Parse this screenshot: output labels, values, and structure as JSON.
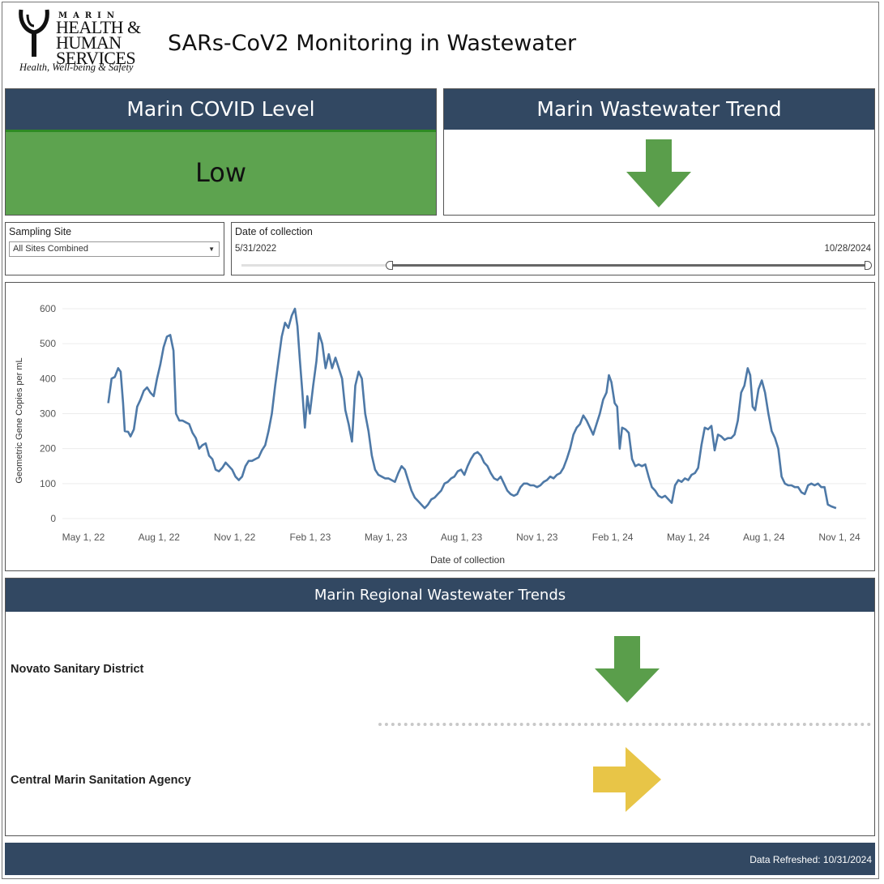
{
  "header": {
    "logo": {
      "marin": "MARIN",
      "line1": "HEALTH &",
      "line2": "HUMAN",
      "line3": "SERVICES",
      "tagline": "Health, Well-being & Safety"
    },
    "title": "SARs-CoV2 Monitoring in Wastewater"
  },
  "covid_level": {
    "title": "Marin COVID Level",
    "value": "Low",
    "color": "#5da34f"
  },
  "wastewater_trend": {
    "title": "Marin Wastewater Trend",
    "direction": "down",
    "arrow_icon": "arrow-down-icon",
    "color": "#5a9e4b"
  },
  "filters": {
    "sampling_site": {
      "label": "Sampling Site",
      "selected": "All Sites Combined"
    },
    "date_of_collection": {
      "label": "Date of collection",
      "start": "5/31/2022",
      "end": "10/28/2024"
    }
  },
  "chart_data": {
    "type": "line",
    "xlabel": "Date of collection",
    "ylabel": "Geometric Gene Copies per mL",
    "ylim": [
      0,
      600
    ],
    "yticks": [
      0,
      100,
      200,
      300,
      400,
      500,
      600
    ],
    "xticks": [
      "May 1, 22",
      "Aug 1, 22",
      "Nov 1, 22",
      "Feb 1, 23",
      "May 1, 23",
      "Aug 1, 23",
      "Nov 1, 23",
      "Feb 1, 24",
      "May 1, 24",
      "Aug 1, 24",
      "Nov 1, 24"
    ],
    "grid": true,
    "line_color": "#4e79a7",
    "series": [
      {
        "points": [
          [
            "2022-05-31",
            330
          ],
          [
            "2022-06-04",
            400
          ],
          [
            "2022-06-08",
            405
          ],
          [
            "2022-06-12",
            430
          ],
          [
            "2022-06-15",
            420
          ],
          [
            "2022-06-18",
            330
          ],
          [
            "2022-06-20",
            250
          ],
          [
            "2022-06-24",
            248
          ],
          [
            "2022-06-27",
            235
          ],
          [
            "2022-07-01",
            255
          ],
          [
            "2022-07-05",
            320
          ],
          [
            "2022-07-09",
            340
          ],
          [
            "2022-07-13",
            365
          ],
          [
            "2022-07-17",
            375
          ],
          [
            "2022-07-21",
            360
          ],
          [
            "2022-07-25",
            350
          ],
          [
            "2022-07-29",
            400
          ],
          [
            "2022-08-02",
            440
          ],
          [
            "2022-08-06",
            490
          ],
          [
            "2022-08-10",
            520
          ],
          [
            "2022-08-14",
            525
          ],
          [
            "2022-08-18",
            480
          ],
          [
            "2022-08-21",
            300
          ],
          [
            "2022-08-25",
            280
          ],
          [
            "2022-08-29",
            280
          ],
          [
            "2022-09-02",
            275
          ],
          [
            "2022-09-06",
            270
          ],
          [
            "2022-09-10",
            245
          ],
          [
            "2022-09-14",
            230
          ],
          [
            "2022-09-18",
            200
          ],
          [
            "2022-09-22",
            210
          ],
          [
            "2022-09-26",
            215
          ],
          [
            "2022-09-30",
            180
          ],
          [
            "2022-10-04",
            170
          ],
          [
            "2022-10-08",
            140
          ],
          [
            "2022-10-12",
            135
          ],
          [
            "2022-10-16",
            145
          ],
          [
            "2022-10-20",
            160
          ],
          [
            "2022-10-24",
            150
          ],
          [
            "2022-10-28",
            140
          ],
          [
            "2022-11-01",
            120
          ],
          [
            "2022-11-05",
            110
          ],
          [
            "2022-11-09",
            120
          ],
          [
            "2022-11-13",
            150
          ],
          [
            "2022-11-17",
            165
          ],
          [
            "2022-11-21",
            165
          ],
          [
            "2022-11-25",
            170
          ],
          [
            "2022-11-29",
            175
          ],
          [
            "2022-12-03",
            195
          ],
          [
            "2022-12-07",
            210
          ],
          [
            "2022-12-11",
            250
          ],
          [
            "2022-12-15",
            300
          ],
          [
            "2022-12-19",
            380
          ],
          [
            "2022-12-23",
            450
          ],
          [
            "2022-12-27",
            520
          ],
          [
            "2022-12-31",
            560
          ],
          [
            "2023-01-04",
            545
          ],
          [
            "2023-01-08",
            580
          ],
          [
            "2023-01-12",
            600
          ],
          [
            "2023-01-15",
            550
          ],
          [
            "2023-01-18",
            450
          ],
          [
            "2023-01-21",
            360
          ],
          [
            "2023-01-24",
            260
          ],
          [
            "2023-01-27",
            350
          ],
          [
            "2023-01-30",
            300
          ],
          [
            "2023-02-03",
            380
          ],
          [
            "2023-02-07",
            450
          ],
          [
            "2023-02-10",
            530
          ],
          [
            "2023-02-14",
            500
          ],
          [
            "2023-02-18",
            430
          ],
          [
            "2023-02-22",
            470
          ],
          [
            "2023-02-26",
            430
          ],
          [
            "2023-03-02",
            460
          ],
          [
            "2023-03-06",
            430
          ],
          [
            "2023-03-10",
            400
          ],
          [
            "2023-03-14",
            310
          ],
          [
            "2023-03-18",
            270
          ],
          [
            "2023-03-22",
            220
          ],
          [
            "2023-03-26",
            380
          ],
          [
            "2023-03-30",
            420
          ],
          [
            "2023-04-03",
            400
          ],
          [
            "2023-04-07",
            300
          ],
          [
            "2023-04-11",
            250
          ],
          [
            "2023-04-15",
            180
          ],
          [
            "2023-04-19",
            140
          ],
          [
            "2023-04-23",
            125
          ],
          [
            "2023-04-27",
            120
          ],
          [
            "2023-05-01",
            115
          ],
          [
            "2023-05-05",
            115
          ],
          [
            "2023-05-09",
            110
          ],
          [
            "2023-05-13",
            105
          ],
          [
            "2023-05-17",
            130
          ],
          [
            "2023-05-21",
            150
          ],
          [
            "2023-05-25",
            140
          ],
          [
            "2023-05-29",
            110
          ],
          [
            "2023-06-02",
            80
          ],
          [
            "2023-06-06",
            60
          ],
          [
            "2023-06-10",
            50
          ],
          [
            "2023-06-14",
            40
          ],
          [
            "2023-06-18",
            30
          ],
          [
            "2023-06-22",
            40
          ],
          [
            "2023-06-26",
            55
          ],
          [
            "2023-06-30",
            60
          ],
          [
            "2023-07-04",
            70
          ],
          [
            "2023-07-08",
            80
          ],
          [
            "2023-07-12",
            100
          ],
          [
            "2023-07-16",
            105
          ],
          [
            "2023-07-20",
            115
          ],
          [
            "2023-07-24",
            120
          ],
          [
            "2023-07-28",
            135
          ],
          [
            "2023-08-01",
            140
          ],
          [
            "2023-08-05",
            125
          ],
          [
            "2023-08-09",
            150
          ],
          [
            "2023-08-13",
            170
          ],
          [
            "2023-08-17",
            185
          ],
          [
            "2023-08-21",
            190
          ],
          [
            "2023-08-25",
            180
          ],
          [
            "2023-08-29",
            160
          ],
          [
            "2023-09-02",
            150
          ],
          [
            "2023-09-06",
            130
          ],
          [
            "2023-09-10",
            115
          ],
          [
            "2023-09-14",
            110
          ],
          [
            "2023-09-18",
            120
          ],
          [
            "2023-09-22",
            100
          ],
          [
            "2023-09-26",
            80
          ],
          [
            "2023-09-30",
            70
          ],
          [
            "2023-10-04",
            65
          ],
          [
            "2023-10-08",
            70
          ],
          [
            "2023-10-12",
            90
          ],
          [
            "2023-10-16",
            100
          ],
          [
            "2023-10-20",
            100
          ],
          [
            "2023-10-24",
            95
          ],
          [
            "2023-10-28",
            95
          ],
          [
            "2023-11-01",
            90
          ],
          [
            "2023-11-05",
            95
          ],
          [
            "2023-11-09",
            105
          ],
          [
            "2023-11-13",
            110
          ],
          [
            "2023-11-17",
            120
          ],
          [
            "2023-11-21",
            115
          ],
          [
            "2023-11-25",
            125
          ],
          [
            "2023-11-29",
            130
          ],
          [
            "2023-12-03",
            145
          ],
          [
            "2023-12-07",
            170
          ],
          [
            "2023-12-11",
            200
          ],
          [
            "2023-12-15",
            240
          ],
          [
            "2023-12-19",
            260
          ],
          [
            "2023-12-23",
            270
          ],
          [
            "2023-12-27",
            295
          ],
          [
            "2023-12-31",
            280
          ],
          [
            "2024-01-04",
            260
          ],
          [
            "2024-01-08",
            240
          ],
          [
            "2024-01-12",
            270
          ],
          [
            "2024-01-16",
            300
          ],
          [
            "2024-01-20",
            340
          ],
          [
            "2024-01-24",
            360
          ],
          [
            "2024-01-27",
            410
          ],
          [
            "2024-01-30",
            390
          ],
          [
            "2024-02-03",
            330
          ],
          [
            "2024-02-06",
            320
          ],
          [
            "2024-02-09",
            200
          ],
          [
            "2024-02-12",
            260
          ],
          [
            "2024-02-16",
            255
          ],
          [
            "2024-02-20",
            245
          ],
          [
            "2024-02-24",
            170
          ],
          [
            "2024-02-28",
            150
          ],
          [
            "2024-03-03",
            155
          ],
          [
            "2024-03-07",
            150
          ],
          [
            "2024-03-11",
            155
          ],
          [
            "2024-03-15",
            120
          ],
          [
            "2024-03-19",
            90
          ],
          [
            "2024-03-23",
            80
          ],
          [
            "2024-03-27",
            65
          ],
          [
            "2024-03-31",
            60
          ],
          [
            "2024-04-04",
            65
          ],
          [
            "2024-04-08",
            55
          ],
          [
            "2024-04-12",
            45
          ],
          [
            "2024-04-16",
            95
          ],
          [
            "2024-04-20",
            110
          ],
          [
            "2024-04-24",
            105
          ],
          [
            "2024-04-28",
            115
          ],
          [
            "2024-05-02",
            110
          ],
          [
            "2024-05-06",
            125
          ],
          [
            "2024-05-10",
            130
          ],
          [
            "2024-05-14",
            145
          ],
          [
            "2024-05-18",
            210
          ],
          [
            "2024-05-22",
            260
          ],
          [
            "2024-05-26",
            255
          ],
          [
            "2024-05-30",
            265
          ],
          [
            "2024-06-03",
            195
          ],
          [
            "2024-06-07",
            240
          ],
          [
            "2024-06-11",
            235
          ],
          [
            "2024-06-15",
            225
          ],
          [
            "2024-06-19",
            230
          ],
          [
            "2024-06-23",
            230
          ],
          [
            "2024-06-27",
            240
          ],
          [
            "2024-07-01",
            280
          ],
          [
            "2024-07-05",
            360
          ],
          [
            "2024-07-09",
            380
          ],
          [
            "2024-07-13",
            430
          ],
          [
            "2024-07-16",
            410
          ],
          [
            "2024-07-19",
            320
          ],
          [
            "2024-07-22",
            310
          ],
          [
            "2024-07-26",
            370
          ],
          [
            "2024-07-30",
            395
          ],
          [
            "2024-08-03",
            360
          ],
          [
            "2024-08-07",
            300
          ],
          [
            "2024-08-11",
            250
          ],
          [
            "2024-08-15",
            230
          ],
          [
            "2024-08-19",
            200
          ],
          [
            "2024-08-23",
            120
          ],
          [
            "2024-08-27",
            100
          ],
          [
            "2024-08-31",
            95
          ],
          [
            "2024-09-04",
            95
          ],
          [
            "2024-09-08",
            90
          ],
          [
            "2024-09-12",
            90
          ],
          [
            "2024-09-16",
            75
          ],
          [
            "2024-09-20",
            70
          ],
          [
            "2024-09-24",
            95
          ],
          [
            "2024-09-28",
            100
          ],
          [
            "2024-10-02",
            95
          ],
          [
            "2024-10-06",
            100
          ],
          [
            "2024-10-10",
            90
          ],
          [
            "2024-10-14",
            90
          ],
          [
            "2024-10-18",
            40
          ],
          [
            "2024-10-22",
            35
          ],
          [
            "2024-10-28",
            30
          ]
        ]
      }
    ]
  },
  "regional": {
    "title": "Marin Regional Wastewater Trends",
    "sites": [
      {
        "name": "Novato Sanitary District",
        "direction": "down",
        "arrow_icon": "arrow-down-icon",
        "color": "#5a9e4b"
      },
      {
        "name": "Central Marin Sanitation Agency",
        "direction": "flat",
        "arrow_icon": "arrow-right-icon",
        "color": "#e8c547"
      }
    ]
  },
  "footer": {
    "refreshed": "Data Refreshed: 10/31/2024"
  }
}
